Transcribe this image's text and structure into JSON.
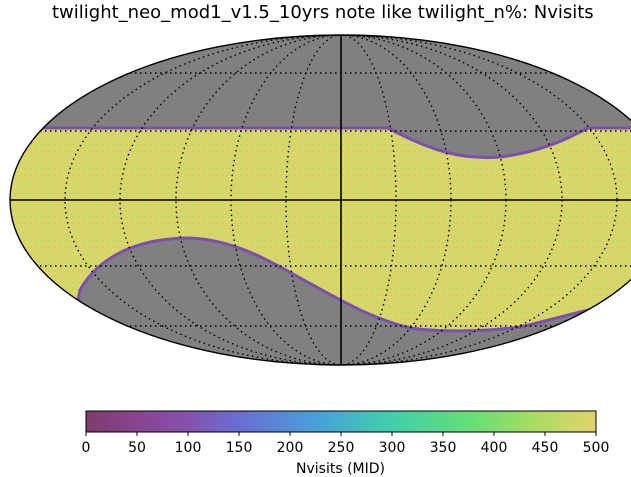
{
  "title": "twilight_neo_mod1_v1.5_10yrs note like twilight_n%: Nvisits",
  "chart_data": {
    "type": "heatmap",
    "projection": "mollweide",
    "title": "twilight_neo_mod1_v1.5_10yrs note like twilight_n%: Nvisits",
    "grid": true,
    "background_color": "#808080",
    "fill_value_typical": 480,
    "colorbar": {
      "label": "Nvisits (MID)",
      "range": [
        0,
        500
      ],
      "ticks": [
        "0",
        "50",
        "100",
        "150",
        "200",
        "250",
        "300",
        "350",
        "400",
        "450",
        "500"
      ],
      "colormap": "viridis"
    },
    "regions": [
      {
        "name": "observed band",
        "approx_value": 480
      }
    ]
  }
}
